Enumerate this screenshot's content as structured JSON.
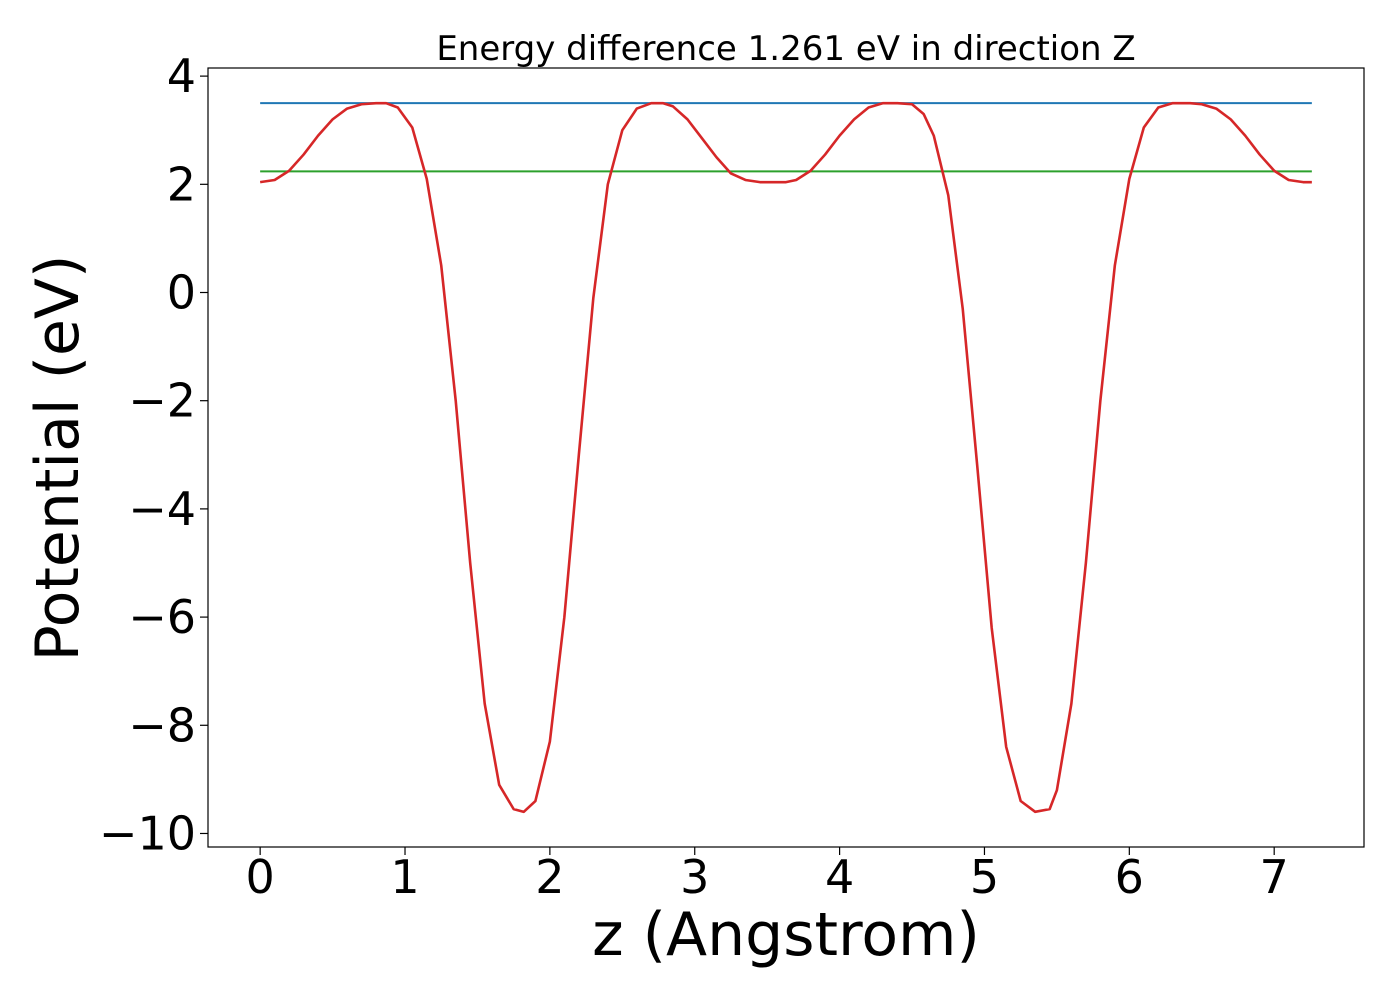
{
  "chart_data": {
    "type": "line",
    "title": "Energy difference 1.261 eV in direction Z",
    "xlabel": "z (Angstrom)",
    "ylabel": "Potential (eV)",
    "xlim": [
      -0.36,
      7.62
    ],
    "ylim": [
      -10.25,
      4.15
    ],
    "xticks": [
      "0",
      "1",
      "2",
      "3",
      "4",
      "5",
      "6",
      "7"
    ],
    "yticks": [
      "−10",
      "−8",
      "−6",
      "−4",
      "−2",
      "0",
      "2",
      "4"
    ],
    "grid": false,
    "series": [
      {
        "color": "#1f77b4",
        "x": [
          0,
          7.26
        ],
        "y": [
          3.5,
          3.5
        ]
      },
      {
        "color": "#2ca02c",
        "x": [
          0,
          7.26
        ],
        "y": [
          2.24,
          2.24
        ]
      },
      {
        "color": "#d62728",
        "x": [
          0.0,
          0.1,
          0.2,
          0.3,
          0.4,
          0.5,
          0.6,
          0.7,
          0.8,
          0.87,
          0.95,
          1.05,
          1.15,
          1.25,
          1.35,
          1.45,
          1.55,
          1.65,
          1.75,
          1.82,
          1.9,
          2.0,
          2.1,
          2.2,
          2.3,
          2.4,
          2.5,
          2.6,
          2.7,
          2.78,
          2.85,
          2.95,
          3.05,
          3.15,
          3.25,
          3.35,
          3.45,
          3.55,
          3.63,
          3.7,
          3.8,
          3.9,
          4.0,
          4.1,
          4.2,
          4.3,
          4.4,
          4.5,
          4.58,
          4.65,
          4.75,
          4.85,
          4.95,
          5.05,
          5.15,
          5.25,
          5.35,
          5.45,
          5.5,
          5.6,
          5.7,
          5.8,
          5.9,
          6.0,
          6.1,
          6.2,
          6.3,
          6.42,
          6.5,
          6.6,
          6.7,
          6.8,
          6.9,
          7.0,
          7.1,
          7.2,
          7.26
        ],
        "y": [
          2.04,
          2.08,
          2.25,
          2.55,
          2.9,
          3.2,
          3.4,
          3.48,
          3.5,
          3.5,
          3.42,
          3.05,
          2.1,
          0.5,
          -2.0,
          -5.0,
          -7.6,
          -9.1,
          -9.55,
          -9.6,
          -9.4,
          -8.3,
          -6.0,
          -3.0,
          -0.1,
          2.0,
          3.0,
          3.4,
          3.5,
          3.5,
          3.44,
          3.2,
          2.85,
          2.5,
          2.2,
          2.08,
          2.04,
          2.04,
          2.04,
          2.08,
          2.25,
          2.55,
          2.9,
          3.2,
          3.42,
          3.5,
          3.5,
          3.48,
          3.3,
          2.9,
          1.8,
          -0.3,
          -3.2,
          -6.2,
          -8.4,
          -9.4,
          -9.6,
          -9.55,
          -9.2,
          -7.6,
          -5.0,
          -2.0,
          0.5,
          2.1,
          3.05,
          3.42,
          3.5,
          3.5,
          3.48,
          3.4,
          3.2,
          2.9,
          2.55,
          2.25,
          2.08,
          2.04,
          2.04
        ]
      }
    ]
  }
}
